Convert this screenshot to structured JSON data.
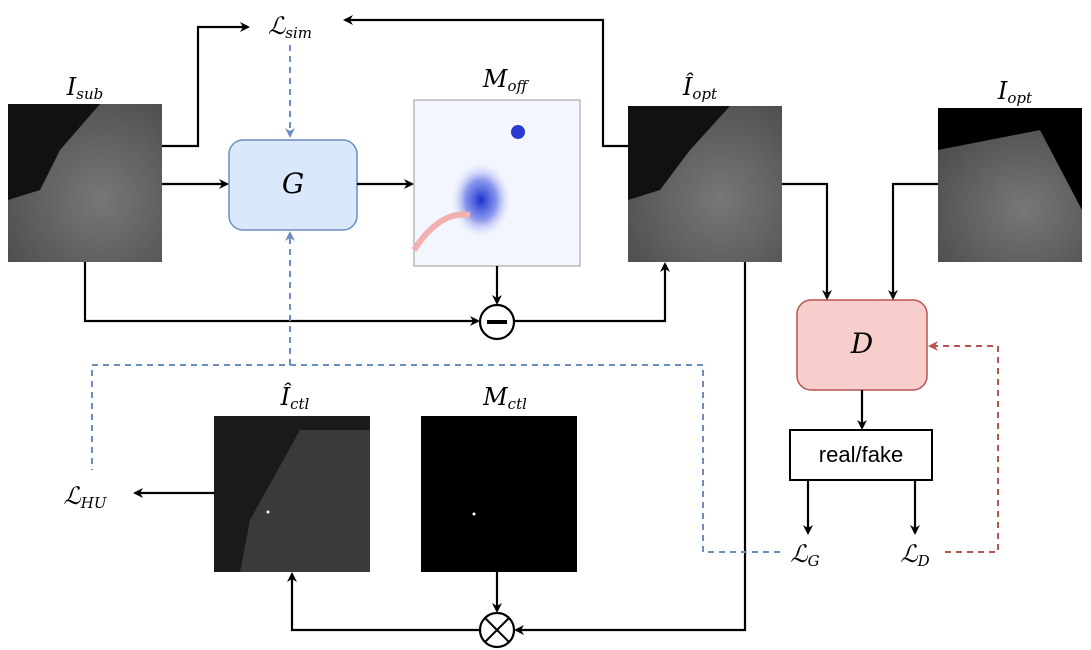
{
  "nodes": {
    "l_sim": {
      "symbol": "ℒ",
      "sub": "sim"
    },
    "i_sub": {
      "symbol": "I",
      "sub": "sub"
    },
    "m_off": {
      "symbol": "M",
      "sub": "off"
    },
    "i_opt_hat": {
      "symbol": "Î",
      "sub": "opt"
    },
    "i_opt": {
      "symbol": "I",
      "sub": "opt"
    },
    "g": {
      "symbol": "G"
    },
    "d": {
      "symbol": "D"
    },
    "real_fake": {
      "label": "real/fake"
    },
    "l_hu": {
      "symbol": "ℒ",
      "sub": "HU"
    },
    "i_ctl_hat": {
      "symbol": "Î",
      "sub": "ctl"
    },
    "m_ctl": {
      "symbol": "M",
      "sub": "ctl"
    },
    "l_g": {
      "symbol": "ℒ",
      "sub": "G"
    },
    "l_d": {
      "symbol": "ℒ",
      "sub": "D"
    }
  }
}
